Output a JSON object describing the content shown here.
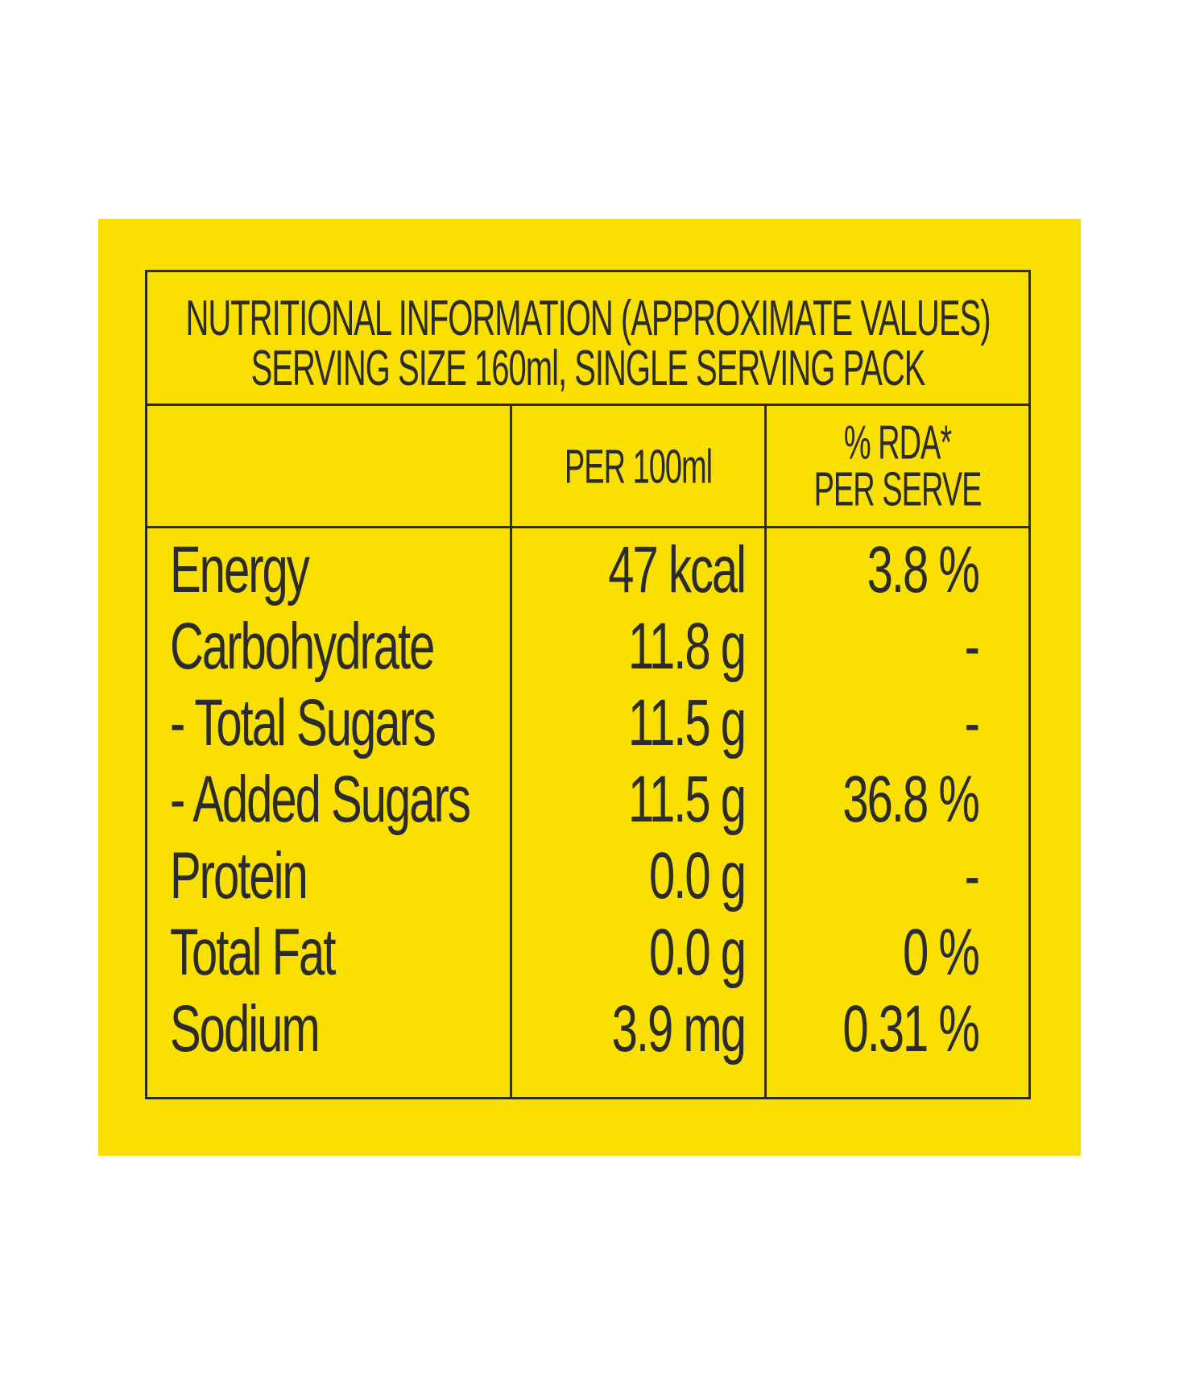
{
  "colors": {
    "panel_background": "#f9e000",
    "text": "#2b2b2b",
    "page_background": "#ffffff"
  },
  "header": {
    "line1": "NUTRITIONAL INFORMATION (APPROXIMATE VALUES)",
    "line2": "SERVING SIZE 160ml, SINGLE SERVING PACK"
  },
  "columns": {
    "per_100ml": "PER 100ml",
    "rda_line1": "% RDA*",
    "rda_line2": "PER SERVE"
  },
  "rows": [
    {
      "name": "Energy",
      "per_100ml": "47 kcal",
      "rda": "3.8 %"
    },
    {
      "name": "Carbohydrate",
      "per_100ml": "11.8 g",
      "rda": "-"
    },
    {
      "name": "- Total Sugars",
      "per_100ml": "11.5 g",
      "rda": "-"
    },
    {
      "name": "- Added Sugars",
      "per_100ml": "11.5 g",
      "rda": "36.8 %"
    },
    {
      "name": "Protein",
      "per_100ml": "0.0 g",
      "rda": "-"
    },
    {
      "name": "Total Fat",
      "per_100ml": "0.0 g",
      "rda": "0 %"
    },
    {
      "name": "Sodium",
      "per_100ml": "3.9 mg",
      "rda": "0.31 %"
    }
  ]
}
